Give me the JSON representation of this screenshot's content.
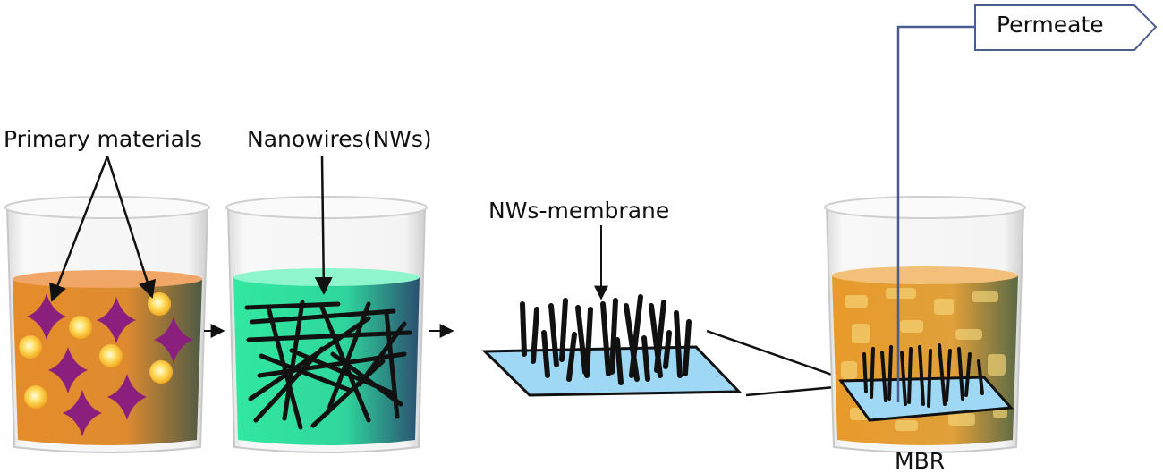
{
  "labels": {
    "primary_materials": "Primary materials",
    "nanowires": "Nanowires(NWs)",
    "nws_membrane": "NWs-membrane",
    "mbr": "MBR",
    "permeate": "Permeate"
  },
  "colors": {
    "orange_liquid": "#e08a2c",
    "green_liquid": "#2fe6a0",
    "membrane_blue": "#9fd8f5",
    "star_purple": "#8a1f7e",
    "bubble_yellow": "#ffd23a",
    "pipe_blue": "#4a5d8c",
    "wire_black": "#111111"
  }
}
